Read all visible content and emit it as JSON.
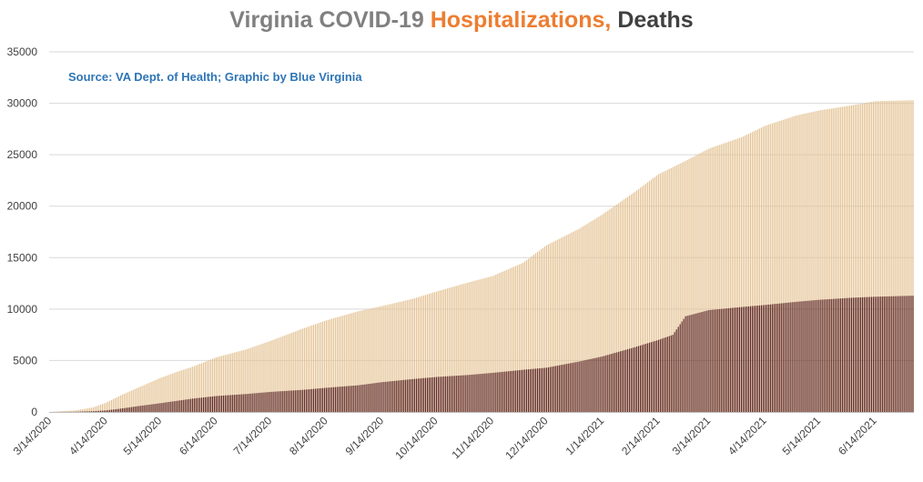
{
  "colors": {
    "hospitalizations": "#E3C191",
    "deaths": "#5A1E14",
    "title_gray": "#808080",
    "title_orange": "#ED7D31",
    "title_dark": "#404040",
    "source_blue": "#2E75B6",
    "grid": "#D9D9D9"
  },
  "chart_data": {
    "type": "bar",
    "stacking": "overlapping",
    "title_parts": [
      "Virginia COVID-19",
      "Hospitalizations,",
      "Deaths"
    ],
    "annotation": "Source: VA Dept. of Health; Graphic by Blue Virginia",
    "x_start": "2020-03-14",
    "x_end": "2021-07-05",
    "x_tick_labels": [
      "3/14/2020",
      "4/14/2020",
      "5/14/2020",
      "6/14/2020",
      "7/14/2020",
      "8/14/2020",
      "9/14/2020",
      "10/14/2020",
      "11/14/2020",
      "12/14/2020",
      "1/14/2021",
      "2/14/2021",
      "3/14/2021",
      "4/14/2021",
      "5/14/2021",
      "6/14/2021"
    ],
    "y_tick_labels": [
      "0",
      "5000",
      "10000",
      "15000",
      "20000",
      "25000",
      "30000",
      "35000"
    ],
    "ylim": [
      0,
      35000
    ],
    "grid": true,
    "legend": "none",
    "series": [
      {
        "key": "hospitalizations",
        "points": [
          [
            "2020-03-14",
            0
          ],
          [
            "2020-03-28",
            150
          ],
          [
            "2020-04-07",
            450
          ],
          [
            "2020-04-14",
            900
          ],
          [
            "2020-04-22",
            1600
          ],
          [
            "2020-05-01",
            2300
          ],
          [
            "2020-05-14",
            3300
          ],
          [
            "2020-05-25",
            4000
          ],
          [
            "2020-06-01",
            4400
          ],
          [
            "2020-06-14",
            5300
          ],
          [
            "2020-07-01",
            6100
          ],
          [
            "2020-07-14",
            6900
          ],
          [
            "2020-08-01",
            8100
          ],
          [
            "2020-08-14",
            8900
          ],
          [
            "2020-09-01",
            9800
          ],
          [
            "2020-09-14",
            10300
          ],
          [
            "2020-10-01",
            11000
          ],
          [
            "2020-10-14",
            11700
          ],
          [
            "2020-11-01",
            12600
          ],
          [
            "2020-11-14",
            13200
          ],
          [
            "2020-12-01",
            14500
          ],
          [
            "2020-12-14",
            16200
          ],
          [
            "2021-01-01",
            17800
          ],
          [
            "2021-01-14",
            19200
          ],
          [
            "2021-02-01",
            21400
          ],
          [
            "2021-02-14",
            23100
          ],
          [
            "2021-03-01",
            24400
          ],
          [
            "2021-03-14",
            25600
          ],
          [
            "2021-04-01",
            26700
          ],
          [
            "2021-04-14",
            27800
          ],
          [
            "2021-05-01",
            28800
          ],
          [
            "2021-05-14",
            29300
          ],
          [
            "2021-06-01",
            29800
          ],
          [
            "2021-06-14",
            30200
          ],
          [
            "2021-07-05",
            30300
          ]
        ]
      },
      {
        "key": "deaths",
        "points": [
          [
            "2020-03-14",
            0
          ],
          [
            "2020-03-28",
            20
          ],
          [
            "2020-04-07",
            80
          ],
          [
            "2020-04-14",
            150
          ],
          [
            "2020-04-22",
            320
          ],
          [
            "2020-05-01",
            550
          ],
          [
            "2020-05-14",
            850
          ],
          [
            "2020-06-01",
            1300
          ],
          [
            "2020-06-14",
            1550
          ],
          [
            "2020-07-01",
            1750
          ],
          [
            "2020-07-14",
            1950
          ],
          [
            "2020-08-01",
            2150
          ],
          [
            "2020-08-14",
            2350
          ],
          [
            "2020-09-01",
            2600
          ],
          [
            "2020-09-14",
            2900
          ],
          [
            "2020-10-01",
            3200
          ],
          [
            "2020-10-14",
            3400
          ],
          [
            "2020-11-01",
            3600
          ],
          [
            "2020-11-14",
            3800
          ],
          [
            "2020-12-01",
            4100
          ],
          [
            "2020-12-14",
            4300
          ],
          [
            "2021-01-01",
            4900
          ],
          [
            "2021-01-14",
            5400
          ],
          [
            "2021-02-01",
            6300
          ],
          [
            "2021-02-14",
            7000
          ],
          [
            "2021-02-22",
            7500
          ],
          [
            "2021-03-01",
            9300
          ],
          [
            "2021-03-14",
            9900
          ],
          [
            "2021-04-01",
            10200
          ],
          [
            "2021-04-14",
            10400
          ],
          [
            "2021-05-01",
            10700
          ],
          [
            "2021-05-14",
            10900
          ],
          [
            "2021-06-01",
            11100
          ],
          [
            "2021-06-14",
            11200
          ],
          [
            "2021-07-05",
            11300
          ]
        ]
      }
    ]
  }
}
